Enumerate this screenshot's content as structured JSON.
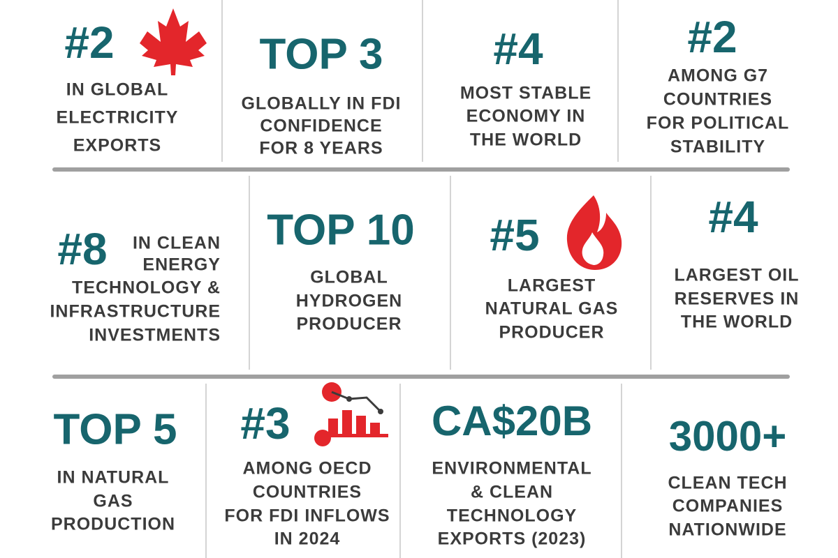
{
  "cells": [
    {
      "headline": "#2",
      "lines": [
        "IN GLOBAL",
        "ELECTRICITY",
        "EXPORTS"
      ]
    },
    {
      "headline": "TOP 3",
      "lines": [
        "GLOBALLY IN FDI",
        "CONFIDENCE",
        "FOR 8 YEARS"
      ]
    },
    {
      "headline": "#4",
      "lines": [
        "MOST STABLE",
        "ECONOMY IN",
        "THE WORLD"
      ]
    },
    {
      "headline": "#2",
      "lines": [
        "AMONG G7",
        "COUNTRIES",
        "FOR POLITICAL",
        "STABILITY"
      ]
    },
    {
      "headline": "#8",
      "lines": [
        "IN CLEAN",
        "ENERGY",
        "TECHNOLOGY &",
        "INFRASTRUCTURE",
        "INVESTMENTS"
      ]
    },
    {
      "headline": "TOP 10",
      "lines": [
        "GLOBAL",
        "HYDROGEN",
        "PRODUCER"
      ]
    },
    {
      "headline": "#5",
      "lines": [
        "LARGEST",
        "NATURAL GAS",
        "PRODUCER"
      ]
    },
    {
      "headline": "#4",
      "lines": [
        "LARGEST OIL",
        "RESERVES IN",
        "THE WORLD"
      ]
    },
    {
      "headline": "TOP 5",
      "lines": [
        "IN NATURAL",
        "GAS",
        "PRODUCTION"
      ]
    },
    {
      "headline": "#3",
      "lines": [
        "AMONG OECD",
        "COUNTRIES",
        "FOR FDI INFLOWS",
        "IN 2024"
      ]
    },
    {
      "headline": "CA$20B",
      "lines": [
        "ENVIRONMENTAL",
        "& CLEAN",
        "TECHNOLOGY",
        "EXPORTS (2023)"
      ]
    },
    {
      "headline": "3000+",
      "lines": [
        "CLEAN TECH",
        "COMPANIES",
        "NATIONWIDE"
      ]
    }
  ]
}
